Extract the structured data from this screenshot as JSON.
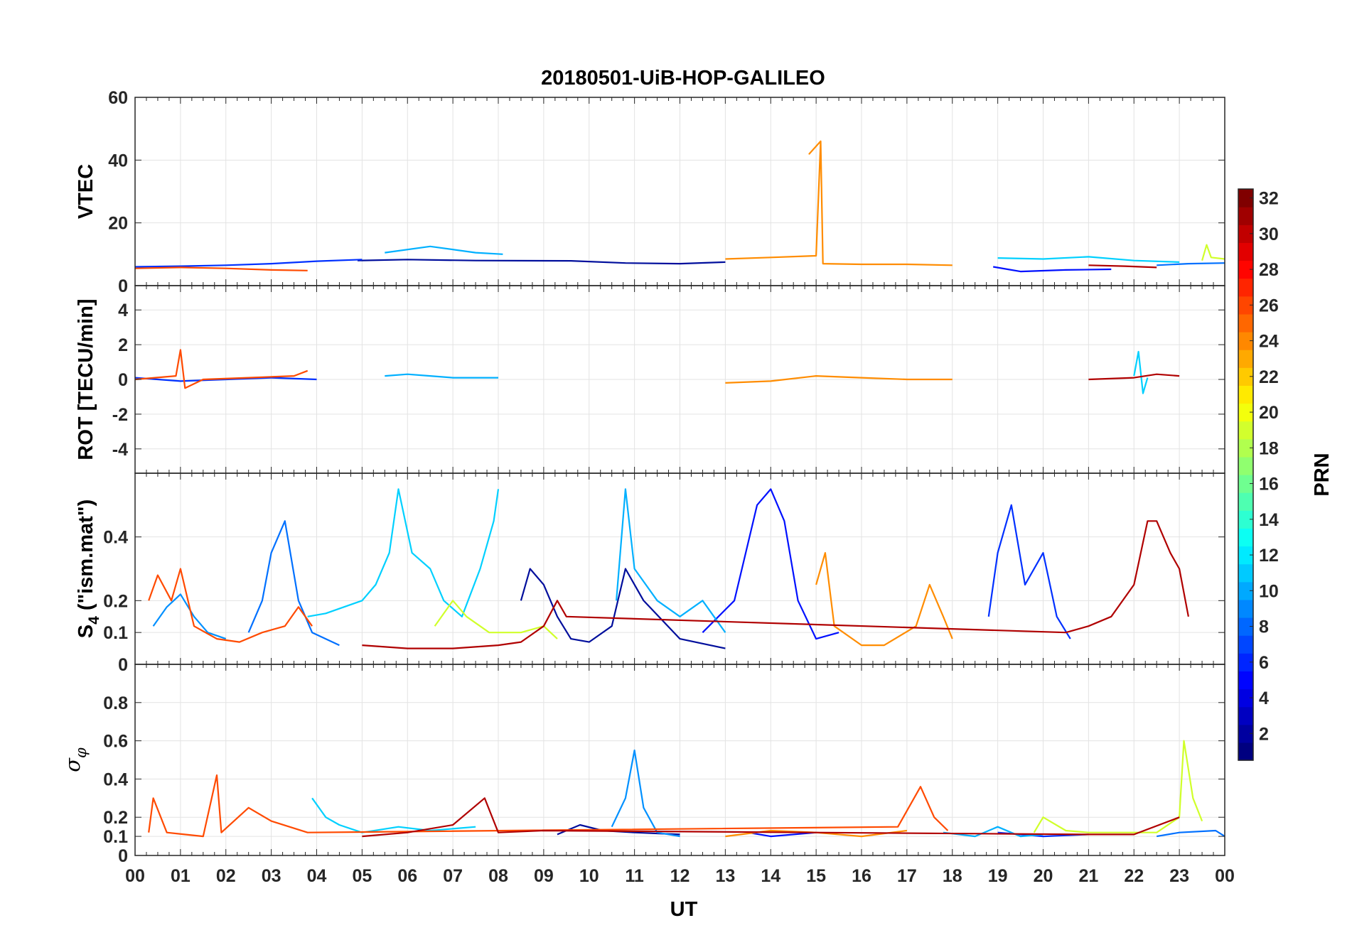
{
  "chart_data": {
    "type": "line",
    "title": "20180501-UiB-HOP-GALILEO",
    "xlabel": "UT",
    "x_range": [
      0,
      24
    ],
    "x_tick_labels": [
      "00",
      "01",
      "02",
      "03",
      "04",
      "05",
      "06",
      "07",
      "08",
      "09",
      "10",
      "11",
      "12",
      "13",
      "14",
      "15",
      "16",
      "17",
      "18",
      "19",
      "20",
      "21",
      "22",
      "23",
      "00"
    ],
    "grid": true,
    "panels": [
      {
        "id": "vtec",
        "ylabel": "VTEC",
        "ylim": [
          0,
          60
        ],
        "y_ticks": [
          0,
          20,
          40,
          60
        ],
        "y_tick_labels": [
          "0",
          "20",
          "40",
          "60"
        ]
      },
      {
        "id": "rot",
        "ylabel": "ROT [TECU/min]",
        "ylim": [
          -5.4,
          5.4
        ],
        "y_ticks": [
          -4,
          -2,
          0,
          2,
          4
        ],
        "y_tick_labels": [
          "-4",
          "-2",
          "0",
          "2",
          "4"
        ]
      },
      {
        "id": "s4",
        "ylabel_main": "S",
        "ylabel_sub": "4",
        "ylabel_rest": " (\"ism.mat\")",
        "ylim": [
          0,
          0.6
        ],
        "y_ticks": [
          0,
          0.1,
          0.2,
          0.4
        ],
        "y_tick_labels": [
          "0",
          "0.1",
          "0.2",
          "0.4"
        ]
      },
      {
        "id": "sigma",
        "ylabel_main": "σ",
        "ylabel_sub": "φ",
        "ylim": [
          0,
          1
        ],
        "y_ticks": [
          0,
          0.1,
          0.2,
          0.4,
          0.6,
          0.8
        ],
        "y_tick_labels": [
          "0",
          "0.1",
          "0.2",
          "0.4",
          "0.6",
          "0.8"
        ]
      }
    ],
    "colorbar": {
      "label": "PRN",
      "range": [
        1,
        32
      ],
      "colormap": "jet",
      "ticks": [
        2,
        4,
        6,
        8,
        10,
        12,
        14,
        16,
        18,
        20,
        22,
        24,
        26,
        28,
        30,
        32
      ],
      "tick_labels": [
        "2",
        "4",
        "6",
        "8",
        "10",
        "12",
        "14",
        "16",
        "18",
        "20",
        "22",
        "24",
        "26",
        "28",
        "30",
        "32"
      ]
    },
    "series": [
      {
        "prn": 2,
        "color": "#000e9c",
        "vtec": [
          [
            4.9,
            8.0
          ],
          [
            6.0,
            8.3
          ],
          [
            7.5,
            8.0
          ],
          [
            9.6,
            7.9
          ],
          [
            10.8,
            7.2
          ],
          [
            12.0,
            7.0
          ],
          [
            13.0,
            7.5
          ]
        ],
        "s4": [
          [
            8.5,
            0.2
          ],
          [
            8.7,
            0.3
          ],
          [
            9.0,
            0.25
          ],
          [
            9.3,
            0.15
          ],
          [
            9.6,
            0.08
          ],
          [
            10.0,
            0.07
          ],
          [
            10.5,
            0.12
          ],
          [
            10.8,
            0.3
          ],
          [
            11.2,
            0.2
          ],
          [
            12.0,
            0.08
          ],
          [
            13.0,
            0.05
          ]
        ],
        "sigma": [
          [
            9.3,
            0.11
          ],
          [
            9.8,
            0.16
          ],
          [
            10.3,
            0.13
          ],
          [
            11.0,
            0.12
          ],
          [
            12.0,
            0.11
          ]
        ]
      },
      {
        "prn": 4,
        "color": "#0010ff",
        "vtec": [
          [
            18.9,
            6.0
          ],
          [
            19.5,
            4.5
          ],
          [
            20.5,
            5.0
          ],
          [
            21.5,
            5.2
          ]
        ],
        "s4": [
          [
            12.5,
            0.1
          ],
          [
            13.2,
            0.2
          ],
          [
            13.7,
            0.5
          ],
          [
            14.0,
            0.55
          ],
          [
            14.3,
            0.45
          ],
          [
            14.6,
            0.2
          ],
          [
            15.0,
            0.08
          ],
          [
            15.5,
            0.1
          ]
        ],
        "sigma": [
          [
            13.5,
            0.12
          ],
          [
            14.0,
            0.1
          ],
          [
            15.0,
            0.12
          ]
        ]
      },
      {
        "prn": 5,
        "color": "#0030ff",
        "vtec": [
          [
            0.0,
            6.0
          ],
          [
            1.0,
            6.2
          ],
          [
            2.0,
            6.5
          ],
          [
            3.0,
            7.0
          ],
          [
            4.0,
            7.8
          ],
          [
            5.0,
            8.3
          ]
        ],
        "rot": [
          [
            0.0,
            0.1
          ],
          [
            1.0,
            -0.1
          ],
          [
            2.0,
            0.0
          ],
          [
            3.0,
            0.1
          ],
          [
            4.0,
            0.0
          ]
        ],
        "s4": [
          [
            18.8,
            0.15
          ],
          [
            19.0,
            0.35
          ],
          [
            19.3,
            0.5
          ],
          [
            19.6,
            0.25
          ],
          [
            20.0,
            0.35
          ],
          [
            20.3,
            0.15
          ],
          [
            20.6,
            0.08
          ]
        ],
        "sigma": [
          [
            19.0,
            0.12
          ],
          [
            20.0,
            0.1
          ],
          [
            21.0,
            0.11
          ]
        ]
      },
      {
        "prn": 8,
        "color": "#0070ff",
        "vtec": [
          [
            22.5,
            6.5
          ],
          [
            23.2,
            7.0
          ],
          [
            24.0,
            7.2
          ]
        ],
        "s4": [
          [
            2.5,
            0.1
          ],
          [
            2.8,
            0.2
          ],
          [
            3.0,
            0.35
          ],
          [
            3.3,
            0.45
          ],
          [
            3.6,
            0.2
          ],
          [
            3.9,
            0.1
          ],
          [
            4.5,
            0.06
          ]
        ],
        "sigma": [
          [
            22.5,
            0.1
          ],
          [
            23.0,
            0.12
          ],
          [
            23.8,
            0.13
          ],
          [
            24.0,
            0.1
          ]
        ]
      },
      {
        "prn": 9,
        "color": "#0090ff",
        "s4": [
          [
            0.4,
            0.12
          ],
          [
            0.7,
            0.18
          ],
          [
            1.0,
            0.22
          ],
          [
            1.3,
            0.15
          ],
          [
            1.6,
            0.1
          ],
          [
            2.0,
            0.08
          ]
        ],
        "sigma": [
          [
            10.5,
            0.15
          ],
          [
            10.8,
            0.3
          ],
          [
            11.0,
            0.55
          ],
          [
            11.2,
            0.25
          ],
          [
            11.5,
            0.12
          ],
          [
            12.0,
            0.1
          ]
        ]
      },
      {
        "prn": 11,
        "color": "#00b0ff",
        "vtec": [
          [
            5.5,
            10.5
          ],
          [
            6.5,
            12.5
          ],
          [
            7.5,
            10.5
          ],
          [
            8.1,
            10.0
          ]
        ],
        "rot": [
          [
            5.5,
            0.2
          ],
          [
            6.0,
            0.3
          ],
          [
            6.5,
            0.2
          ],
          [
            7.0,
            0.1
          ],
          [
            8.0,
            0.1
          ]
        ],
        "s4": [
          [
            10.6,
            0.2
          ],
          [
            10.8,
            0.55
          ],
          [
            11.0,
            0.3
          ],
          [
            11.5,
            0.2
          ],
          [
            12.0,
            0.15
          ],
          [
            12.5,
            0.2
          ],
          [
            13.0,
            0.1
          ]
        ],
        "sigma": [
          [
            17.8,
            0.12
          ],
          [
            18.5,
            0.1
          ],
          [
            19.0,
            0.15
          ],
          [
            19.5,
            0.1
          ],
          [
            20.0,
            0.11
          ]
        ]
      },
      {
        "prn": 12,
        "color": "#00d0ff",
        "vtec": [
          [
            19.0,
            8.8
          ],
          [
            20.0,
            8.5
          ],
          [
            21.0,
            9.2
          ],
          [
            22.0,
            8.0
          ],
          [
            23.0,
            7.5
          ]
        ],
        "rot": [
          [
            22.0,
            0.2
          ],
          [
            22.1,
            1.6
          ],
          [
            22.2,
            -0.8
          ],
          [
            22.3,
            0.1
          ]
        ],
        "s4": [
          [
            3.8,
            0.15
          ],
          [
            4.2,
            0.16
          ],
          [
            4.6,
            0.18
          ],
          [
            5.0,
            0.2
          ],
          [
            5.3,
            0.25
          ],
          [
            5.6,
            0.35
          ],
          [
            5.8,
            0.55
          ],
          [
            6.1,
            0.35
          ],
          [
            6.5,
            0.3
          ],
          [
            6.8,
            0.2
          ],
          [
            7.2,
            0.15
          ],
          [
            7.6,
            0.3
          ],
          [
            7.9,
            0.45
          ],
          [
            8.0,
            0.55
          ]
        ],
        "sigma": [
          [
            3.9,
            0.3
          ],
          [
            4.2,
            0.2
          ],
          [
            4.5,
            0.16
          ],
          [
            5.0,
            0.12
          ],
          [
            5.8,
            0.15
          ],
          [
            6.5,
            0.13
          ],
          [
            7.5,
            0.15
          ]
        ]
      },
      {
        "prn": 19,
        "color": "#d0ff2a",
        "vtec": [
          [
            23.5,
            8.0
          ],
          [
            23.6,
            13.0
          ],
          [
            23.7,
            9.0
          ],
          [
            24.0,
            8.5
          ]
        ],
        "s4": [
          [
            6.6,
            0.12
          ],
          [
            7.0,
            0.2
          ],
          [
            7.3,
            0.15
          ],
          [
            7.8,
            0.1
          ],
          [
            8.5,
            0.1
          ],
          [
            9.0,
            0.12
          ],
          [
            9.3,
            0.08
          ]
        ],
        "sigma": [
          [
            19.8,
            0.12
          ],
          [
            20.0,
            0.2
          ],
          [
            20.5,
            0.13
          ],
          [
            21.0,
            0.12
          ],
          [
            22.5,
            0.12
          ],
          [
            23.0,
            0.2
          ],
          [
            23.1,
            0.6
          ],
          [
            23.3,
            0.3
          ],
          [
            23.5,
            0.18
          ]
        ]
      },
      {
        "prn": 24,
        "color": "#ff8c00",
        "vtec": [
          [
            13.0,
            8.5
          ],
          [
            14.0,
            9.0
          ],
          [
            15.0,
            9.5
          ],
          [
            15.1,
            46.0
          ],
          [
            14.85,
            42.0
          ],
          [
            15.1,
            46.0
          ],
          [
            15.15,
            7.0
          ],
          [
            16.0,
            6.8
          ],
          [
            17.0,
            6.8
          ],
          [
            18.0,
            6.5
          ]
        ],
        "rot": [
          [
            13.0,
            -0.2
          ],
          [
            14.0,
            -0.1
          ],
          [
            15.0,
            0.2
          ],
          [
            16.0,
            0.1
          ],
          [
            17.0,
            0.0
          ],
          [
            18.0,
            0.0
          ]
        ],
        "s4": [
          [
            15.0,
            0.25
          ],
          [
            15.2,
            0.35
          ],
          [
            15.4,
            0.12
          ],
          [
            16.0,
            0.06
          ],
          [
            16.5,
            0.06
          ],
          [
            17.2,
            0.12
          ],
          [
            17.5,
            0.25
          ],
          [
            17.8,
            0.15
          ],
          [
            18.0,
            0.08
          ]
        ],
        "sigma": [
          [
            13.0,
            0.1
          ],
          [
            14.0,
            0.13
          ],
          [
            15.0,
            0.12
          ],
          [
            16.0,
            0.1
          ],
          [
            17.0,
            0.13
          ]
        ]
      },
      {
        "prn": 26,
        "color": "#ff4a00",
        "vtec": [
          [
            0.0,
            5.5
          ],
          [
            1.0,
            5.8
          ],
          [
            2.0,
            5.5
          ],
          [
            3.0,
            5.0
          ],
          [
            3.8,
            4.8
          ]
        ],
        "rot": [
          [
            0.0,
            0.0
          ],
          [
            0.9,
            0.2
          ],
          [
            1.0,
            1.7
          ],
          [
            1.1,
            -0.5
          ],
          [
            1.5,
            0.0
          ],
          [
            2.5,
            0.1
          ],
          [
            3.5,
            0.2
          ],
          [
            3.8,
            0.5
          ]
        ],
        "s4": [
          [
            0.3,
            0.2
          ],
          [
            0.5,
            0.28
          ],
          [
            0.8,
            0.2
          ],
          [
            1.0,
            0.3
          ],
          [
            1.3,
            0.12
          ],
          [
            1.8,
            0.08
          ],
          [
            2.3,
            0.07
          ],
          [
            2.8,
            0.1
          ],
          [
            3.3,
            0.12
          ],
          [
            3.6,
            0.18
          ],
          [
            3.9,
            0.12
          ]
        ],
        "sigma": [
          [
            0.3,
            0.12
          ],
          [
            0.4,
            0.3
          ],
          [
            0.7,
            0.12
          ],
          [
            1.5,
            0.1
          ],
          [
            1.8,
            0.42
          ],
          [
            1.9,
            0.12
          ],
          [
            2.5,
            0.25
          ],
          [
            3.0,
            0.18
          ],
          [
            3.8,
            0.12
          ],
          [
            16.8,
            0.15
          ],
          [
            17.3,
            0.36
          ],
          [
            17.6,
            0.2
          ],
          [
            17.9,
            0.13
          ]
        ]
      },
      {
        "prn": 31,
        "color": "#b00000",
        "vtec": [
          [
            21.0,
            6.5
          ],
          [
            21.8,
            6.2
          ],
          [
            22.5,
            5.8
          ]
        ],
        "rot": [
          [
            21.0,
            0.0
          ],
          [
            22.0,
            0.1
          ],
          [
            22.5,
            0.3
          ],
          [
            23.0,
            0.2
          ]
        ],
        "s4": [
          [
            5.0,
            0.06
          ],
          [
            6.0,
            0.05
          ],
          [
            7.0,
            0.05
          ],
          [
            8.0,
            0.06
          ],
          [
            8.5,
            0.07
          ],
          [
            9.0,
            0.12
          ],
          [
            9.3,
            0.2
          ],
          [
            9.5,
            0.15
          ],
          [
            20.5,
            0.1
          ],
          [
            21.0,
            0.12
          ],
          [
            21.5,
            0.15
          ],
          [
            22.0,
            0.25
          ],
          [
            22.3,
            0.45
          ],
          [
            22.5,
            0.45
          ],
          [
            22.8,
            0.35
          ],
          [
            23.0,
            0.3
          ],
          [
            23.2,
            0.15
          ]
        ],
        "sigma": [
          [
            5.0,
            0.1
          ],
          [
            6.0,
            0.12
          ],
          [
            7.0,
            0.16
          ],
          [
            7.7,
            0.3
          ],
          [
            8.0,
            0.12
          ],
          [
            9.0,
            0.13
          ],
          [
            21.0,
            0.11
          ],
          [
            22.0,
            0.11
          ],
          [
            23.0,
            0.2
          ]
        ]
      }
    ]
  }
}
